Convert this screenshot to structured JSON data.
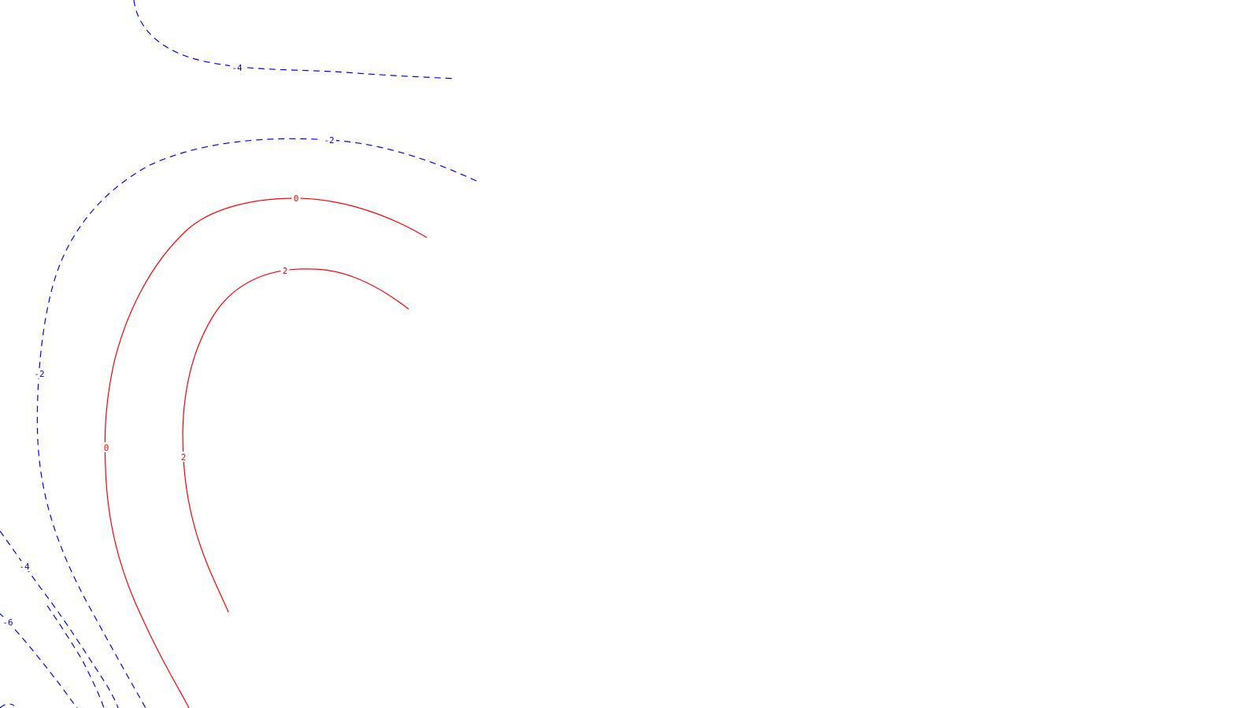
{
  "chart_data": {
    "type": "contour",
    "title": "",
    "xlabel": "",
    "ylabel": "",
    "grid": false,
    "legend": "none",
    "positive_color": "#ff0000",
    "negative_color": "#0000ff",
    "positive_style": "solid",
    "negative_style": "dashed",
    "contours": [
      {
        "level": "-4",
        "kind": "negative"
      },
      {
        "level": "-2",
        "kind": "negative"
      },
      {
        "level": "0",
        "kind": "positive"
      },
      {
        "level": "2",
        "kind": "positive"
      },
      {
        "level": "-2",
        "kind": "negative"
      },
      {
        "level": "-4",
        "kind": "negative"
      },
      {
        "level": "-6",
        "kind": "negative"
      }
    ]
  }
}
